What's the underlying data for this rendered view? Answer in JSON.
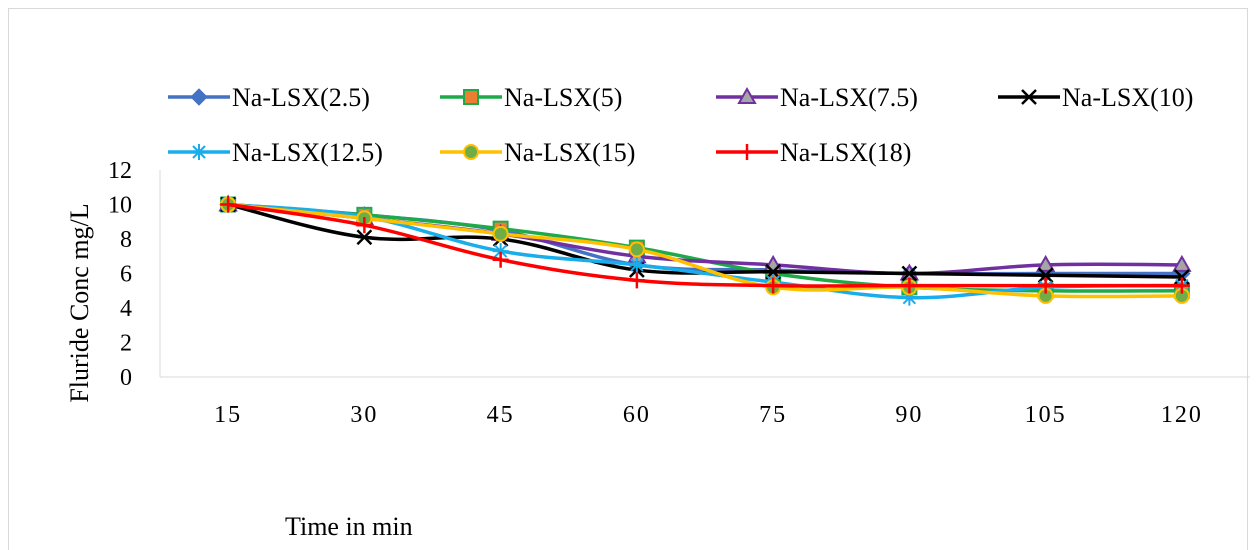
{
  "chart_data": {
    "type": "line",
    "title": "",
    "xlabel": "Time in min",
    "ylabel": "Fluride Conc mg/L",
    "categories": [
      "15",
      "30",
      "45",
      "60",
      "75",
      "90",
      "105",
      "120"
    ],
    "y_ticks": [
      "0",
      "2",
      "4",
      "6",
      "8",
      "10",
      "12"
    ],
    "ylim": [
      0,
      12
    ],
    "grid": false,
    "legend_position": "top",
    "series": [
      {
        "name": "Na-LSX(2.5)",
        "color": "#4472C4",
        "marker": "diamond",
        "values": [
          10,
          9.4,
          8.5,
          6.5,
          6.2,
          6.0,
          6.0,
          6.0
        ]
      },
      {
        "name": "Na-LSX(5)",
        "color": "#1FAA4A",
        "marker": "square",
        "marker_fill": "#ED7D31",
        "values": [
          10,
          9.4,
          8.6,
          7.5,
          6.0,
          5.2,
          5.0,
          5.0
        ]
      },
      {
        "name": "Na-LSX(7.5)",
        "color": "#7030A0",
        "marker": "triangle",
        "marker_fill": "#A5A5A5",
        "values": [
          10,
          9.2,
          8.3,
          7.0,
          6.5,
          6.0,
          6.5,
          6.5
        ]
      },
      {
        "name": "Na-LSX(10)",
        "color": "#000000",
        "marker": "x",
        "values": [
          10,
          8.1,
          8.0,
          6.2,
          6.1,
          6.0,
          5.9,
          5.8
        ]
      },
      {
        "name": "Na-LSX(12.5)",
        "color": "#1AADEB",
        "marker": "star",
        "values": [
          10,
          9.3,
          7.3,
          6.5,
          5.5,
          4.6,
          5.2,
          5.3
        ]
      },
      {
        "name": "Na-LSX(15)",
        "color": "#FFC000",
        "marker": "circle",
        "marker_fill": "#70AD47",
        "values": [
          10,
          9.2,
          8.3,
          7.4,
          5.2,
          5.2,
          4.7,
          4.7
        ]
      },
      {
        "name": "Na-LSX(18)",
        "color": "#FF0000",
        "marker": "plus",
        "values": [
          10,
          8.8,
          6.8,
          5.6,
          5.3,
          5.3,
          5.3,
          5.3
        ]
      }
    ]
  }
}
